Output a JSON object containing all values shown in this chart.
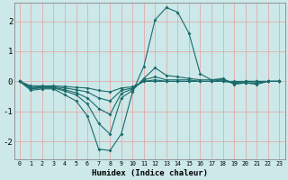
{
  "xlabel": "Humidex (Indice chaleur)",
  "bg_color": "#cce8e8",
  "line_color": "#1a6b6b",
  "grid_color": "#e8a0a0",
  "xlim": [
    -0.5,
    23.5
  ],
  "ylim": [
    -2.6,
    2.6
  ],
  "xticks": [
    0,
    1,
    2,
    3,
    4,
    5,
    6,
    7,
    8,
    9,
    10,
    11,
    12,
    13,
    14,
    15,
    16,
    17,
    18,
    19,
    20,
    21,
    22,
    23
  ],
  "yticks": [
    -2,
    -1,
    0,
    1,
    2
  ],
  "lines": [
    [
      0.0,
      -0.3,
      -0.25,
      -0.25,
      -0.45,
      -0.65,
      -1.15,
      -2.25,
      -2.3,
      -1.75,
      -0.35,
      0.5,
      2.05,
      2.45,
      2.3,
      1.6,
      0.25,
      0.05,
      0.1,
      -0.1,
      -0.05,
      -0.1,
      0.0,
      0.0
    ],
    [
      0.0,
      -0.25,
      -0.22,
      -0.22,
      -0.32,
      -0.45,
      -0.75,
      -1.4,
      -1.75,
      -0.55,
      -0.3,
      0.1,
      0.45,
      0.2,
      0.15,
      0.1,
      0.05,
      0.05,
      0.05,
      -0.05,
      -0.05,
      -0.05,
      0.0,
      0.0
    ],
    [
      0.0,
      -0.22,
      -0.2,
      -0.2,
      -0.28,
      -0.38,
      -0.55,
      -0.9,
      -1.1,
      -0.4,
      -0.25,
      0.05,
      0.15,
      0.05,
      0.05,
      0.05,
      0.0,
      0.0,
      0.05,
      -0.05,
      -0.05,
      -0.05,
      0.0,
      0.0
    ],
    [
      0.0,
      -0.2,
      -0.18,
      -0.18,
      -0.22,
      -0.28,
      -0.35,
      -0.55,
      -0.65,
      -0.3,
      -0.22,
      0.0,
      0.05,
      0.0,
      0.0,
      0.0,
      0.0,
      0.0,
      0.0,
      -0.05,
      0.0,
      0.0,
      0.0,
      0.0
    ],
    [
      0.0,
      -0.15,
      -0.15,
      -0.15,
      -0.17,
      -0.2,
      -0.22,
      -0.3,
      -0.35,
      -0.22,
      -0.18,
      0.0,
      0.0,
      0.0,
      0.0,
      0.0,
      0.0,
      0.0,
      0.0,
      0.0,
      0.0,
      0.0,
      0.0,
      0.0
    ]
  ]
}
